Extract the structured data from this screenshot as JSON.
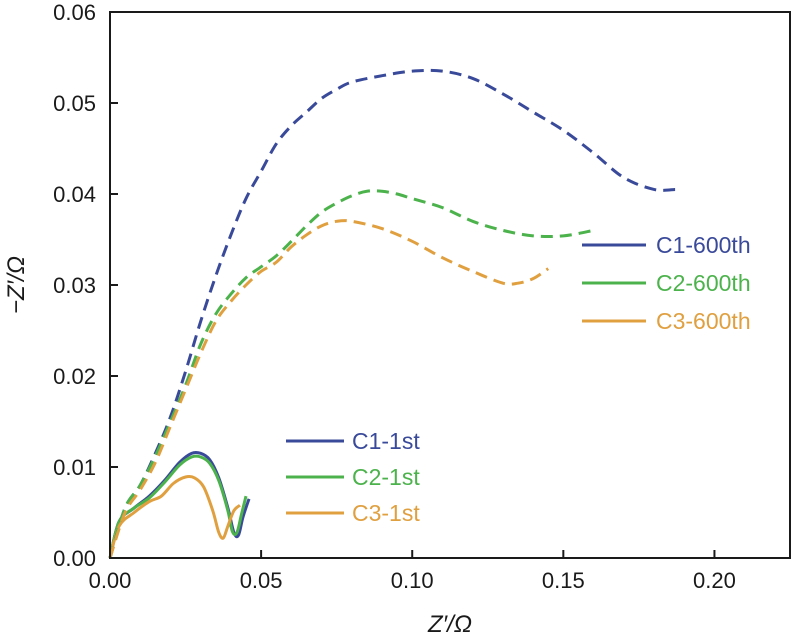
{
  "chart_data": {
    "type": "line",
    "title": "",
    "xlabel": "Z′/Ω",
    "ylabel": "−Z′/Ω",
    "xlim": [
      0.0,
      0.225
    ],
    "ylim": [
      0.0,
      0.06
    ],
    "grid": false,
    "x_ticks": [
      0.0,
      0.05,
      0.1,
      0.15,
      0.2
    ],
    "x_tick_labels": [
      "0.00",
      "0.05",
      "0.10",
      "0.15",
      "0.20"
    ],
    "y_ticks": [
      0.0,
      0.01,
      0.02,
      0.03,
      0.04,
      0.05,
      0.06
    ],
    "y_tick_labels": [
      "0.00",
      "0.01",
      "0.02",
      "0.03",
      "0.04",
      "0.05",
      "0.06"
    ],
    "legends": [
      {
        "placement": "center-right",
        "entries": [
          "C1-600th",
          "C2-600th",
          "C3-600th"
        ]
      },
      {
        "placement": "lower-center",
        "entries": [
          "C1-1st",
          "C2-1st",
          "C3-1st"
        ]
      }
    ],
    "series": [
      {
        "name": "C1-1st",
        "color": "#3a4a9a",
        "dash": "solid",
        "x": [
          0.0,
          0.003,
          0.008,
          0.013,
          0.018,
          0.023,
          0.027,
          0.03,
          0.033,
          0.036,
          0.039,
          0.041,
          0.0425,
          0.044,
          0.046
        ],
        "y": [
          0.0,
          0.004,
          0.0055,
          0.0068,
          0.0085,
          0.0105,
          0.0115,
          0.0115,
          0.0108,
          0.0088,
          0.0055,
          0.0028,
          0.0025,
          0.0045,
          0.0065
        ]
      },
      {
        "name": "C2-1st",
        "color": "#4cb34c",
        "dash": "solid",
        "x": [
          0.0,
          0.003,
          0.008,
          0.013,
          0.018,
          0.023,
          0.027,
          0.03,
          0.033,
          0.036,
          0.039,
          0.0405,
          0.042,
          0.0435,
          0.045
        ],
        "y": [
          0.0,
          0.004,
          0.0055,
          0.0066,
          0.0083,
          0.0102,
          0.0111,
          0.0111,
          0.0104,
          0.0085,
          0.0052,
          0.0029,
          0.0028,
          0.0048,
          0.0068
        ]
      },
      {
        "name": "C3-1st",
        "color": "#e0a040",
        "dash": "solid",
        "x": [
          0.0,
          0.003,
          0.008,
          0.013,
          0.017,
          0.021,
          0.025,
          0.028,
          0.031,
          0.034,
          0.036,
          0.0375,
          0.039,
          0.041,
          0.043
        ],
        "y": [
          0.0,
          0.0035,
          0.005,
          0.0062,
          0.0068,
          0.0082,
          0.0089,
          0.0088,
          0.0078,
          0.0052,
          0.0028,
          0.0022,
          0.0035,
          0.0052,
          0.0058
        ]
      },
      {
        "name": "C1-600th",
        "color": "#3a4a9a",
        "dash": "dashed",
        "x": [
          0.0,
          0.005,
          0.01,
          0.015,
          0.02,
          0.025,
          0.03,
          0.035,
          0.04,
          0.045,
          0.05,
          0.055,
          0.06,
          0.065,
          0.07,
          0.075,
          0.08,
          0.09,
          0.1,
          0.11,
          0.12,
          0.13,
          0.14,
          0.15,
          0.16,
          0.17,
          0.18,
          0.187
        ],
        "y": [
          0.0,
          0.0055,
          0.008,
          0.0115,
          0.0155,
          0.0205,
          0.026,
          0.031,
          0.0355,
          0.0395,
          0.0425,
          0.0455,
          0.0475,
          0.049,
          0.0505,
          0.0515,
          0.0523,
          0.053,
          0.0535,
          0.0535,
          0.0527,
          0.051,
          0.049,
          0.047,
          0.0445,
          0.0418,
          0.0405,
          0.0405
        ]
      },
      {
        "name": "C2-600th",
        "color": "#4cb34c",
        "dash": "dashed",
        "x": [
          0.0,
          0.005,
          0.01,
          0.015,
          0.02,
          0.025,
          0.03,
          0.035,
          0.04,
          0.045,
          0.05,
          0.055,
          0.06,
          0.065,
          0.07,
          0.075,
          0.08,
          0.085,
          0.09,
          0.095,
          0.1,
          0.11,
          0.12,
          0.13,
          0.14,
          0.15,
          0.16
        ],
        "y": [
          0.0,
          0.0055,
          0.008,
          0.0112,
          0.015,
          0.019,
          0.0235,
          0.0268,
          0.029,
          0.0308,
          0.032,
          0.0332,
          0.0348,
          0.0365,
          0.038,
          0.039,
          0.0398,
          0.0403,
          0.0403,
          0.04,
          0.0395,
          0.0385,
          0.037,
          0.036,
          0.0354,
          0.0354,
          0.036
        ]
      },
      {
        "name": "C3-600th",
        "color": "#e0a040",
        "dash": "dashed",
        "x": [
          0.0,
          0.005,
          0.01,
          0.015,
          0.02,
          0.025,
          0.03,
          0.035,
          0.04,
          0.045,
          0.05,
          0.055,
          0.06,
          0.065,
          0.07,
          0.075,
          0.08,
          0.09,
          0.1,
          0.11,
          0.12,
          0.13,
          0.135,
          0.14,
          0.145
        ],
        "y": [
          0.0,
          0.005,
          0.0075,
          0.0105,
          0.0145,
          0.0185,
          0.0225,
          0.026,
          0.0282,
          0.03,
          0.0315,
          0.0325,
          0.0342,
          0.0355,
          0.0365,
          0.037,
          0.037,
          0.0362,
          0.0348,
          0.033,
          0.0315,
          0.0302,
          0.0302,
          0.0307,
          0.0318
        ]
      }
    ]
  }
}
